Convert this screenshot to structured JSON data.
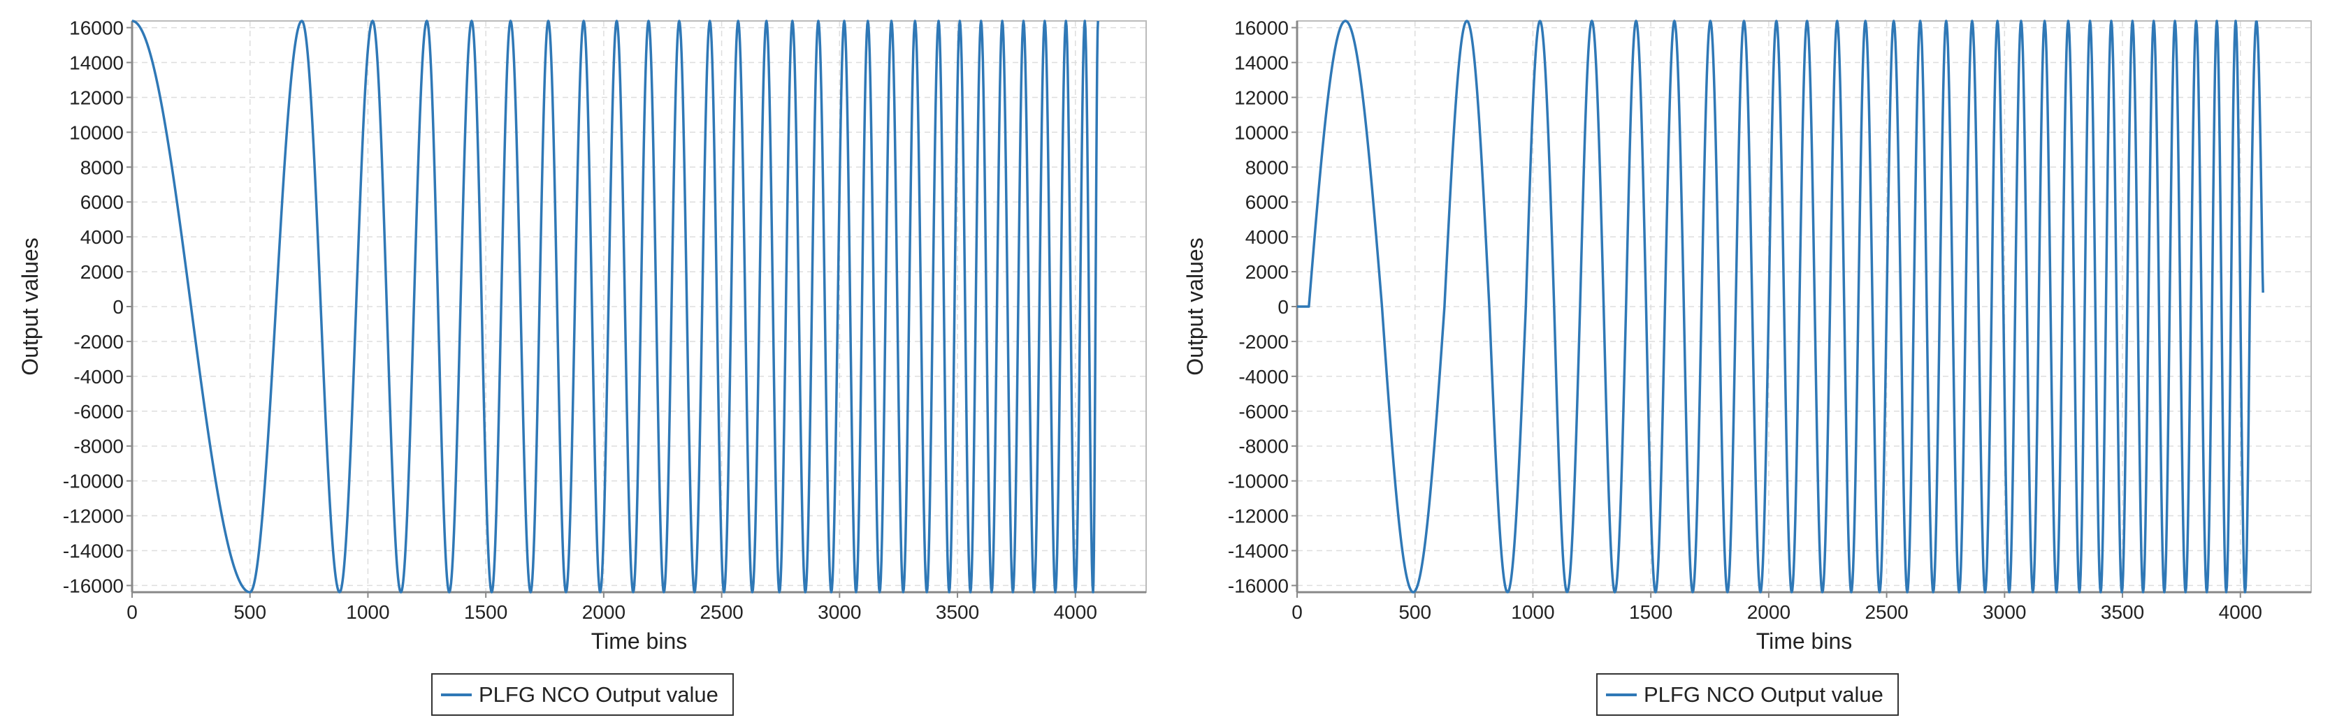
{
  "colors": {
    "series": "#2f78b6",
    "axis": "#999999",
    "grid": "#dddddd",
    "text": "#222222"
  },
  "chart_data": [
    {
      "type": "line",
      "xlabel": "Time bins",
      "ylabel": "Output values",
      "xlim": [
        0,
        4300
      ],
      "ylim": [
        -16384,
        16384
      ],
      "xticks": [
        0,
        500,
        1000,
        1500,
        2000,
        2500,
        3000,
        3500,
        4000
      ],
      "yticks": [
        16000,
        14000,
        12000,
        10000,
        8000,
        6000,
        4000,
        2000,
        0,
        -2000,
        -4000,
        -6000,
        -8000,
        -10000,
        -12000,
        -14000,
        -16000
      ],
      "grid": true,
      "legend_position": "bottom-center",
      "series": [
        {
          "name": "PLFG NCO Output value",
          "waveform": "cosine chirp",
          "amplitude": 16384,
          "phase_offset_deg": 90,
          "x_start": 0,
          "x_end": 4096,
          "start_hold_bins": 0,
          "extrema_x": [
            0,
            500,
            720,
            880,
            1020,
            1140,
            1250,
            1345,
            1440,
            1525,
            1605,
            1690,
            1765,
            1840,
            1915,
            1985,
            2055,
            2125,
            2190,
            2255,
            2320,
            2385,
            2450,
            2510,
            2570,
            2630,
            2690,
            2745,
            2800,
            2855,
            2910,
            2965,
            3020,
            3070,
            3120,
            3170,
            3220,
            3270,
            3320,
            3370,
            3420,
            3465,
            3510,
            3555,
            3600,
            3645,
            3690,
            3735,
            3780,
            3825,
            3870,
            3915,
            3960,
            4000,
            4040,
            4075,
            4096
          ],
          "end_value": 16384
        }
      ]
    },
    {
      "type": "line",
      "xlabel": "Time bins",
      "ylabel": "Output values",
      "xlim": [
        0,
        4300
      ],
      "ylim": [
        -16384,
        16384
      ],
      "xticks": [
        0,
        500,
        1000,
        1500,
        2000,
        2500,
        3000,
        3500,
        4000
      ],
      "yticks": [
        16000,
        14000,
        12000,
        10000,
        8000,
        6000,
        4000,
        2000,
        0,
        -2000,
        -4000,
        -6000,
        -8000,
        -10000,
        -12000,
        -14000,
        -16000
      ],
      "grid": true,
      "legend_position": "bottom-center",
      "series": [
        {
          "name": "PLFG NCO Output value",
          "waveform": "sine chirp",
          "amplitude": 16384,
          "phase_offset_deg": 0,
          "x_start": 0,
          "x_end": 4096,
          "start_hold_bins": 50,
          "extrema_x": [
            50,
            360,
            625,
            815,
            970,
            1090,
            1200,
            1300,
            1395,
            1480,
            1560,
            1640,
            1715,
            1790,
            1860,
            1930,
            2000,
            2065,
            2130,
            2195,
            2260,
            2320,
            2380,
            2440,
            2500,
            2560,
            2615,
            2670,
            2725,
            2780,
            2835,
            2890,
            2945,
            2995,
            3045,
            3095,
            3145,
            3195,
            3245,
            3295,
            3340,
            3385,
            3430,
            3475,
            3520,
            3565,
            3610,
            3655,
            3700,
            3745,
            3790,
            3835,
            3880,
            3920,
            3960,
            4000,
            4040,
            4096
          ],
          "end_value": 800
        }
      ]
    }
  ]
}
